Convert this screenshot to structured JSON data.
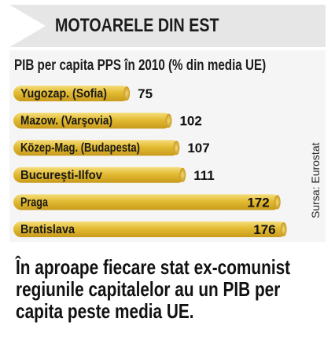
{
  "header": {
    "title": "MOTOARELE DIN EST"
  },
  "chart_data": {
    "type": "bar",
    "title": "PIB per capita PPS în 2010 (% din media UE)",
    "categories": [
      "Yugozap. (Sofia)",
      "Mazow. (Varşovia)",
      "Közep-Mag. (Budapesta)",
      "Bucureşti-Ilfov",
      "Praga",
      "Bratislava"
    ],
    "values": [
      75,
      102,
      107,
      111,
      172,
      176
    ],
    "value_labels": [
      "75",
      "102",
      "107",
      "111",
      "172",
      "176"
    ],
    "orientation": "horizontal",
    "bar_color": "#e5bf37",
    "grid": false
  },
  "source": "Sursa: Eurostat",
  "note": {
    "lines": [
      "În aproape fiecare stat ex-comunist",
      "regiunile capitalelor au un PIB per",
      "capita peste media UE."
    ]
  }
}
